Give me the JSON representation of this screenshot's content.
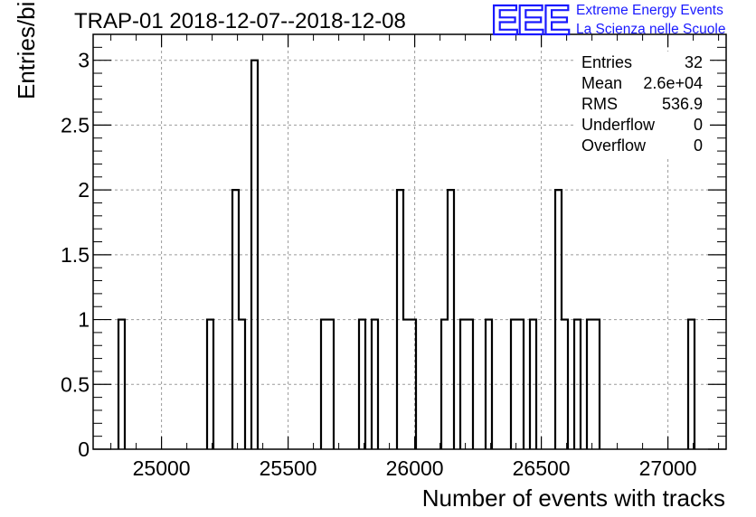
{
  "header": {
    "title": "TRAP-01 2018-12-07--2018-12-08",
    "logo_text": "EEE",
    "logo_line1": "Extreme Energy Events",
    "logo_line2": "La Scienza nelle Scuole"
  },
  "stats": {
    "entries_label": "Entries",
    "entries_value": "32",
    "mean_label": "Mean",
    "mean_value": "2.6e+04",
    "rms_label": "RMS",
    "rms_value": "536.9",
    "underflow_label": "Underflow",
    "underflow_value": "0",
    "overflow_label": "Overflow",
    "overflow_value": "0"
  },
  "colors": {
    "line": "#000000",
    "grid": "#9b9b9b",
    "logo": "#1a1aff"
  },
  "chart_data": {
    "type": "bar",
    "histogram": true,
    "title": "TRAP-01 2018-12-07--2018-12-08",
    "xlabel": "Number of events with tracks",
    "ylabel": "Entries/bin",
    "xlim": [
      24730,
      27230
    ],
    "ylim": [
      0,
      3.2
    ],
    "grid": true,
    "x_ticks": [
      25000,
      25500,
      26000,
      26500,
      27000
    ],
    "y_ticks": [
      0,
      0.5,
      1,
      1.5,
      2,
      2.5,
      3
    ],
    "y_tick_labels": [
      "0",
      "0.5",
      "1",
      "1.5",
      "2",
      "2.5",
      "3"
    ],
    "bin_width": 25,
    "bins": [
      {
        "x0": 24830,
        "count": 1
      },
      {
        "x0": 25180,
        "count": 1
      },
      {
        "x0": 25280,
        "count": 2
      },
      {
        "x0": 25305,
        "count": 1
      },
      {
        "x0": 25355,
        "count": 3
      },
      {
        "x0": 25630,
        "count": 1
      },
      {
        "x0": 25655,
        "count": 1
      },
      {
        "x0": 25780,
        "count": 1
      },
      {
        "x0": 25830,
        "count": 1
      },
      {
        "x0": 25930,
        "count": 2
      },
      {
        "x0": 25955,
        "count": 1
      },
      {
        "x0": 25980,
        "count": 1
      },
      {
        "x0": 26105,
        "count": 1
      },
      {
        "x0": 26130,
        "count": 2
      },
      {
        "x0": 26180,
        "count": 1
      },
      {
        "x0": 26205,
        "count": 1
      },
      {
        "x0": 26280,
        "count": 1
      },
      {
        "x0": 26380,
        "count": 1
      },
      {
        "x0": 26405,
        "count": 1
      },
      {
        "x0": 26455,
        "count": 1
      },
      {
        "x0": 26555,
        "count": 2
      },
      {
        "x0": 26580,
        "count": 1
      },
      {
        "x0": 26630,
        "count": 1
      },
      {
        "x0": 26680,
        "count": 1
      },
      {
        "x0": 26705,
        "count": 1
      },
      {
        "x0": 27080,
        "count": 1
      }
    ]
  }
}
